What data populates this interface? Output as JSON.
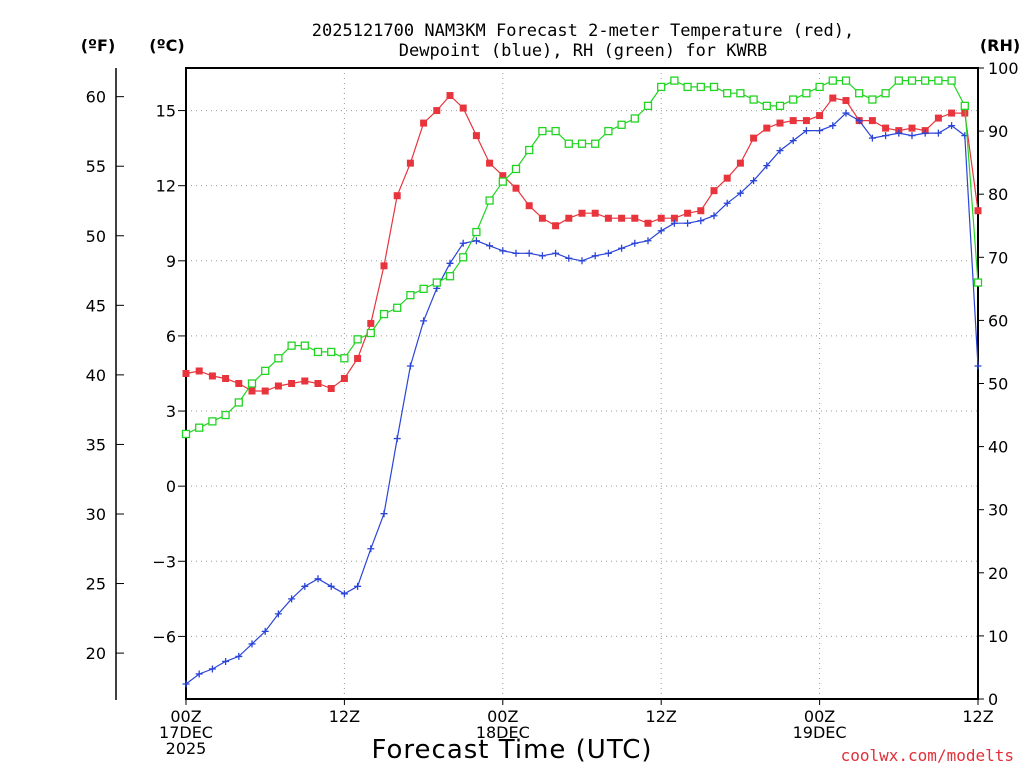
{
  "chart_data": {
    "type": "line",
    "title_line1": "2025121700 NAM3KM Forecast 2-meter Temperature (red),",
    "title_line2": "Dewpoint (blue), RH (green) for KWRB",
    "xlabel": "Forecast Time (UTC)",
    "credit": "coolwx.com/modelts",
    "units": {
      "fahrenheit": "(ºF)",
      "celsius": "(ºC)",
      "rh": "(RH)"
    },
    "x_range_hours": [
      0,
      60
    ],
    "x_ticks": [
      {
        "hour": 0,
        "l1": "00Z",
        "l2": "17DEC",
        "l3": "2025"
      },
      {
        "hour": 12,
        "l1": "12Z",
        "l2": "",
        "l3": ""
      },
      {
        "hour": 24,
        "l1": "00Z",
        "l2": "18DEC",
        "l3": ""
      },
      {
        "hour": 36,
        "l1": "12Z",
        "l2": "",
        "l3": ""
      },
      {
        "hour": 48,
        "l1": "00Z",
        "l2": "19DEC",
        "l3": ""
      },
      {
        "hour": 60,
        "l1": "12Z",
        "l2": "",
        "l3": ""
      }
    ],
    "ylim_c": [
      -8.5,
      16.7
    ],
    "ylim_rh": [
      0,
      100
    ],
    "c_ticks": [
      -6,
      -3,
      0,
      3,
      6,
      9,
      12,
      15
    ],
    "c_tick_labels": [
      "−6",
      "−3",
      "0",
      "3",
      "6",
      "9",
      "12",
      "15"
    ],
    "f_ticks": [
      20,
      25,
      30,
      35,
      40,
      45,
      50,
      55,
      60
    ],
    "rh_ticks": [
      0,
      10,
      20,
      30,
      40,
      50,
      60,
      70,
      80,
      90,
      100
    ],
    "series": [
      {
        "name": "Temperature",
        "color": "#e8343c",
        "marker": "filled-square",
        "values_c": [
          4.5,
          4.6,
          4.4,
          4.3,
          4.1,
          3.8,
          3.8,
          4.0,
          4.1,
          4.2,
          4.1,
          3.9,
          4.3,
          5.1,
          6.5,
          8.8,
          11.6,
          12.9,
          14.5,
          15.0,
          15.6,
          15.1,
          14.0,
          12.9,
          12.4,
          11.9,
          11.2,
          10.7,
          10.4,
          10.7,
          10.9,
          10.9,
          10.7,
          10.7,
          10.7,
          10.5,
          10.7,
          10.7,
          10.9,
          11.0,
          11.8,
          12.3,
          12.9,
          13.9,
          14.3,
          14.5,
          14.6,
          14.6,
          14.8,
          15.5,
          15.4,
          14.6,
          14.6,
          14.3,
          14.2,
          14.3,
          14.2,
          14.7,
          14.9,
          14.9,
          11.0
        ]
      },
      {
        "name": "Dewpoint",
        "color": "#2a44d8",
        "marker": "plus",
        "values_c": [
          -7.9,
          -7.5,
          -7.3,
          -7.0,
          -6.8,
          -6.3,
          -5.8,
          -5.1,
          -4.5,
          -4.0,
          -3.7,
          -4.0,
          -4.3,
          -4.0,
          -2.5,
          -1.1,
          1.9,
          4.8,
          6.6,
          7.9,
          8.9,
          9.7,
          9.8,
          9.6,
          9.4,
          9.3,
          9.3,
          9.2,
          9.3,
          9.1,
          9.0,
          9.2,
          9.3,
          9.5,
          9.7,
          9.8,
          10.2,
          10.5,
          10.5,
          10.6,
          10.8,
          11.3,
          11.7,
          12.2,
          12.8,
          13.4,
          13.8,
          14.2,
          14.2,
          14.4,
          14.9,
          14.6,
          13.9,
          14.0,
          14.1,
          14.0,
          14.1,
          14.1,
          14.4,
          14.0,
          4.8
        ]
      },
      {
        "name": "Relative Humidity",
        "color": "#22d422",
        "marker": "open-square",
        "values_rh": [
          42,
          43,
          44,
          45,
          47,
          50,
          52,
          54,
          56,
          56,
          55,
          55,
          54,
          57,
          58,
          61,
          62,
          64,
          65,
          66,
          67,
          70,
          74,
          79,
          82,
          84,
          87,
          90,
          90,
          88,
          88,
          88,
          90,
          91,
          92,
          94,
          97,
          98,
          97,
          97,
          97,
          96,
          96,
          95,
          94,
          94,
          95,
          96,
          97,
          98,
          98,
          96,
          95,
          96,
          98,
          98,
          98,
          98,
          98,
          94,
          66
        ]
      }
    ]
  }
}
